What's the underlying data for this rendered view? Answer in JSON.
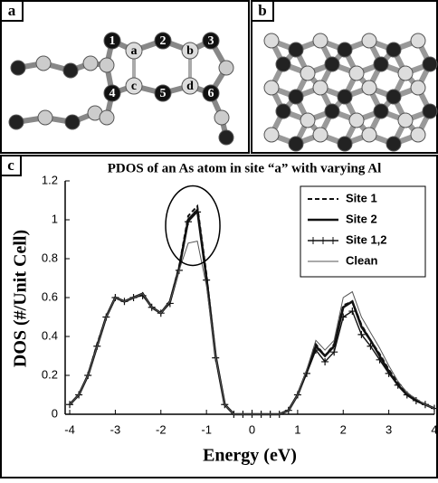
{
  "panels": {
    "a": {
      "label": "a",
      "atoms": [
        "1",
        "a",
        "2",
        "b",
        "3",
        "4",
        "c",
        "5",
        "d",
        "6"
      ]
    },
    "b": {
      "label": "b"
    },
    "c": {
      "label": "c"
    }
  },
  "chart_data": {
    "type": "line",
    "title": "PDOS of an As atom in site “a” with varying Al",
    "x_label": "Energy (eV)",
    "y_label": "DOS (#/Unit Cell)",
    "xlim": [
      -4.1,
      4.0
    ],
    "ylim": [
      0,
      1.2
    ],
    "xticks": [
      -4,
      -3,
      -2,
      -1,
      0,
      1,
      2,
      3,
      4
    ],
    "yticks": [
      0,
      0.2,
      0.4,
      0.6,
      0.8,
      1,
      1.2
    ],
    "legend": "upper right",
    "x": [
      -4.0,
      -3.8,
      -3.6,
      -3.4,
      -3.2,
      -3.0,
      -2.8,
      -2.6,
      -2.4,
      -2.2,
      -2.0,
      -1.8,
      -1.6,
      -1.4,
      -1.2,
      -1.0,
      -0.8,
      -0.6,
      -0.4,
      -0.2,
      0.0,
      0.2,
      0.4,
      0.6,
      0.8,
      1.0,
      1.2,
      1.4,
      1.6,
      1.8,
      2.0,
      2.2,
      2.4,
      2.6,
      2.8,
      3.0,
      3.2,
      3.4,
      3.6,
      3.8,
      4.0
    ],
    "series": [
      {
        "name": "Site 1",
        "color": "#111111",
        "style": "dashed",
        "values": [
          0.05,
          0.1,
          0.2,
          0.36,
          0.5,
          0.6,
          0.58,
          0.6,
          0.62,
          0.55,
          0.52,
          0.58,
          0.76,
          1.02,
          1.07,
          0.72,
          0.3,
          0.05,
          0.0,
          0.0,
          0.0,
          0.0,
          0.0,
          0.0,
          0.02,
          0.1,
          0.22,
          0.36,
          0.3,
          0.36,
          0.56,
          0.58,
          0.46,
          0.38,
          0.31,
          0.23,
          0.16,
          0.11,
          0.07,
          0.05,
          0.03
        ]
      },
      {
        "name": "Site 2",
        "color": "#111111",
        "style": "thick",
        "values": [
          0.05,
          0.1,
          0.2,
          0.35,
          0.5,
          0.6,
          0.58,
          0.6,
          0.62,
          0.55,
          0.52,
          0.58,
          0.75,
          1.0,
          1.05,
          0.7,
          0.3,
          0.05,
          0.0,
          0.0,
          0.0,
          0.0,
          0.0,
          0.0,
          0.02,
          0.1,
          0.22,
          0.35,
          0.3,
          0.35,
          0.55,
          0.58,
          0.45,
          0.38,
          0.3,
          0.22,
          0.15,
          0.1,
          0.07,
          0.05,
          0.03
        ]
      },
      {
        "name": "Site 1,2",
        "color": "#111111",
        "style": "marker",
        "values": [
          0.05,
          0.1,
          0.2,
          0.35,
          0.5,
          0.6,
          0.58,
          0.6,
          0.61,
          0.55,
          0.52,
          0.57,
          0.74,
          0.99,
          1.04,
          0.69,
          0.29,
          0.05,
          0.0,
          0.0,
          0.0,
          0.0,
          0.0,
          0.0,
          0.02,
          0.1,
          0.21,
          0.33,
          0.27,
          0.32,
          0.5,
          0.53,
          0.41,
          0.35,
          0.28,
          0.21,
          0.15,
          0.1,
          0.07,
          0.05,
          0.03
        ]
      },
      {
        "name": "Clean",
        "color": "#555555",
        "style": "thin",
        "values": [
          0.05,
          0.1,
          0.2,
          0.35,
          0.5,
          0.6,
          0.58,
          0.6,
          0.62,
          0.55,
          0.52,
          0.58,
          0.74,
          0.88,
          0.89,
          0.66,
          0.3,
          0.05,
          0.0,
          0.0,
          0.0,
          0.0,
          0.0,
          0.0,
          0.02,
          0.1,
          0.23,
          0.38,
          0.33,
          0.38,
          0.6,
          0.63,
          0.5,
          0.42,
          0.34,
          0.25,
          0.17,
          0.11,
          0.08,
          0.05,
          0.03
        ]
      }
    ]
  }
}
